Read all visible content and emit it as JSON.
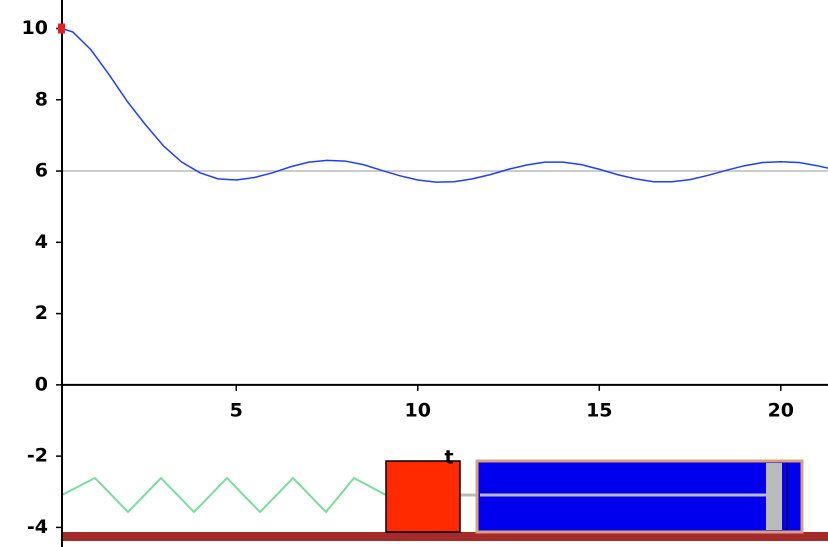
{
  "chart_data": {
    "type": "line",
    "annotation": "t",
    "x": [
      0.2,
      0.5,
      1,
      1.5,
      2,
      2.5,
      3,
      3.5,
      4,
      4.5,
      5,
      5.5,
      6,
      6.5,
      7,
      7.5,
      8,
      8.5,
      9,
      9.5,
      10,
      10.5,
      11,
      11.5,
      12,
      12.5,
      13,
      13.5,
      14,
      14.5,
      15,
      15.5,
      16,
      16.5,
      17,
      17.5,
      18,
      18.5,
      19,
      19.5,
      20,
      20.5,
      21,
      21.3
    ],
    "series": [
      {
        "color": "#1f3fff",
        "values": [
          10,
          9.9,
          9.4,
          8.7,
          7.95,
          7.3,
          6.7,
          6.25,
          5.95,
          5.78,
          5.75,
          5.82,
          5.95,
          6.12,
          6.25,
          6.3,
          6.28,
          6.18,
          6.02,
          5.87,
          5.75,
          5.69,
          5.7,
          5.78,
          5.9,
          6.05,
          6.17,
          6.25,
          6.25,
          6.18,
          6.05,
          5.9,
          5.78,
          5.7,
          5.7,
          5.76,
          5.88,
          6.02,
          6.15,
          6.24,
          6.26,
          6.24,
          6.15,
          6.08
        ]
      }
    ],
    "reference_line": 6,
    "xlim": [
      0.2,
      21.3
    ],
    "ylim": [
      -4.55,
      10.8
    ],
    "xticks": [
      5,
      10,
      15,
      20
    ],
    "yticks": [
      -4,
      -2,
      0,
      2,
      4,
      6,
      8,
      10
    ]
  }
}
